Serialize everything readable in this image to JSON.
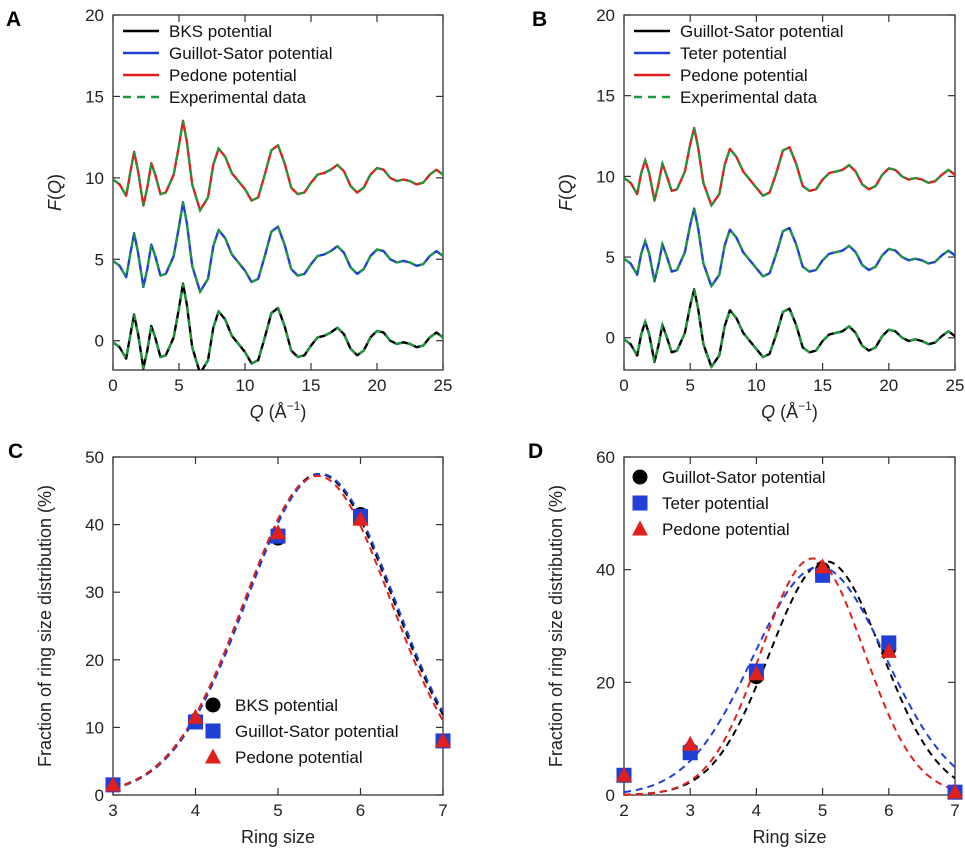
{
  "chart_data": [
    {
      "panel": "A",
      "type": "line",
      "xlabel_parts": [
        "Q",
        " (Å",
        "−1",
        ")"
      ],
      "ylabel_parts": [
        "F",
        "(",
        "Q",
        ")"
      ],
      "xlim": [
        0,
        25
      ],
      "ylim": [
        -1.8,
        20
      ],
      "xticks": [
        0,
        5,
        10,
        15,
        20,
        25
      ],
      "yticks": [
        0,
        5,
        10,
        15,
        20
      ],
      "grid": false,
      "legend_position": "top-left",
      "legend": [
        {
          "name": "BKS potential",
          "color": "#000000",
          "dash": false
        },
        {
          "name": "Guillot-Sator potential",
          "color": "#1f3fd6",
          "dash": false
        },
        {
          "name": "Pedone potential",
          "color": "#e0201c",
          "dash": false
        },
        {
          "name": "Experimental data",
          "color": "#1a9a3a",
          "dash": true
        }
      ],
      "x": [
        0,
        0.5,
        1.0,
        1.3,
        1.6,
        1.9,
        2.3,
        2.6,
        2.9,
        3.2,
        3.6,
        4.0,
        4.6,
        5.0,
        5.3,
        5.6,
        6.0,
        6.6,
        7.2,
        7.6,
        8.0,
        8.5,
        9.0,
        9.5,
        10.0,
        10.5,
        11.0,
        11.5,
        12.0,
        12.5,
        13.0,
        13.5,
        14.0,
        14.5,
        15.0,
        15.5,
        16.0,
        16.5,
        17.0,
        17.5,
        18.0,
        18.5,
        19.0,
        19.5,
        20.0,
        20.5,
        21.0,
        21.5,
        22.0,
        22.5,
        23.0,
        23.5,
        24.0,
        24.5,
        25.0
      ],
      "series": [
        {
          "name": "BKS potential",
          "color": "#000000",
          "offset": 0,
          "values": [
            -0.1,
            -0.4,
            -1.1,
            0.3,
            1.6,
            0.4,
            -1.7,
            -0.6,
            0.9,
            0.2,
            -1.0,
            -0.9,
            0.2,
            2.0,
            3.5,
            2.2,
            -0.4,
            -2.0,
            -1.2,
            0.8,
            1.8,
            1.3,
            0.3,
            -0.2,
            -0.7,
            -1.4,
            -1.2,
            0.2,
            1.7,
            2.0,
            0.9,
            -0.6,
            -1.0,
            -0.9,
            -0.3,
            0.2,
            0.3,
            0.5,
            0.8,
            0.4,
            -0.5,
            -0.9,
            -0.6,
            0.2,
            0.6,
            0.5,
            0.0,
            -0.2,
            -0.1,
            -0.2,
            -0.4,
            -0.3,
            0.2,
            0.5,
            0.2
          ]
        },
        {
          "name": "Guillot-Sator potential",
          "color": "#1f3fd6",
          "offset": 5,
          "values": [
            -0.1,
            -0.4,
            -1.1,
            0.3,
            1.6,
            0.4,
            -1.7,
            -0.6,
            0.9,
            0.2,
            -1.0,
            -0.9,
            0.2,
            2.0,
            3.5,
            2.2,
            -0.4,
            -2.0,
            -1.2,
            0.8,
            1.8,
            1.3,
            0.3,
            -0.2,
            -0.7,
            -1.4,
            -1.2,
            0.2,
            1.7,
            2.0,
            0.9,
            -0.6,
            -1.0,
            -0.9,
            -0.3,
            0.2,
            0.3,
            0.5,
            0.8,
            0.4,
            -0.5,
            -0.9,
            -0.6,
            0.2,
            0.6,
            0.5,
            0.0,
            -0.2,
            -0.1,
            -0.2,
            -0.4,
            -0.3,
            0.2,
            0.5,
            0.2
          ]
        },
        {
          "name": "Pedone potential",
          "color": "#e0201c",
          "offset": 10,
          "values": [
            -0.1,
            -0.4,
            -1.1,
            0.3,
            1.6,
            0.4,
            -1.7,
            -0.6,
            0.9,
            0.2,
            -1.0,
            -0.9,
            0.2,
            2.0,
            3.5,
            2.2,
            -0.4,
            -2.0,
            -1.2,
            0.8,
            1.8,
            1.3,
            0.3,
            -0.2,
            -0.7,
            -1.4,
            -1.2,
            0.2,
            1.7,
            2.0,
            0.9,
            -0.6,
            -1.0,
            -0.9,
            -0.3,
            0.2,
            0.3,
            0.5,
            0.8,
            0.4,
            -0.5,
            -0.9,
            -0.6,
            0.2,
            0.6,
            0.5,
            0.0,
            -0.2,
            -0.1,
            -0.2,
            -0.4,
            -0.3,
            0.2,
            0.5,
            0.2
          ]
        }
      ]
    },
    {
      "panel": "B",
      "type": "line",
      "xlabel_parts": [
        "Q",
        " (Å",
        "−1",
        ")"
      ],
      "ylabel_parts": [
        "F",
        "(",
        "Q",
        ")"
      ],
      "xlim": [
        0,
        25
      ],
      "ylim": [
        -2,
        20
      ],
      "xticks": [
        0,
        5,
        10,
        15,
        20,
        25
      ],
      "yticks": [
        0,
        5,
        10,
        15,
        20
      ],
      "grid": false,
      "legend_position": "top-left",
      "legend": [
        {
          "name": "Guillot-Sator potential",
          "color": "#000000",
          "dash": false
        },
        {
          "name": "Teter potential",
          "color": "#1f3fd6",
          "dash": false
        },
        {
          "name": "Pedone potential",
          "color": "#e0201c",
          "dash": false
        },
        {
          "name": "Experimental data",
          "color": "#1a9a3a",
          "dash": true
        }
      ],
      "x": [
        0,
        0.5,
        1.0,
        1.3,
        1.6,
        1.9,
        2.3,
        2.6,
        2.9,
        3.2,
        3.6,
        4.0,
        4.6,
        5.0,
        5.3,
        5.6,
        6.0,
        6.6,
        7.2,
        7.6,
        8.0,
        8.5,
        9.0,
        9.5,
        10.0,
        10.5,
        11.0,
        11.5,
        12.0,
        12.5,
        13.0,
        13.5,
        14.0,
        14.5,
        15.0,
        15.5,
        16.0,
        16.5,
        17.0,
        17.5,
        18.0,
        18.5,
        19.0,
        19.5,
        20.0,
        20.5,
        21.0,
        21.5,
        22.0,
        22.5,
        23.0,
        23.5,
        24.0,
        24.5,
        25.0
      ],
      "series": [
        {
          "name": "Guillot-Sator potential",
          "color": "#000000",
          "offset": 0,
          "values": [
            -0.1,
            -0.4,
            -1.1,
            0.2,
            1.0,
            0.2,
            -1.5,
            -0.5,
            0.8,
            0.1,
            -0.9,
            -0.8,
            0.3,
            2.0,
            3.0,
            1.8,
            -0.4,
            -1.8,
            -1.1,
            0.7,
            1.7,
            1.2,
            0.3,
            -0.2,
            -0.7,
            -1.2,
            -1.0,
            0.2,
            1.6,
            1.8,
            0.8,
            -0.6,
            -0.9,
            -0.8,
            -0.2,
            0.2,
            0.3,
            0.4,
            0.7,
            0.3,
            -0.5,
            -0.8,
            -0.6,
            0.1,
            0.5,
            0.4,
            0.0,
            -0.2,
            -0.1,
            -0.2,
            -0.4,
            -0.3,
            0.1,
            0.4,
            0.1
          ]
        },
        {
          "name": "Teter potential",
          "color": "#1f3fd6",
          "offset": 5,
          "values": [
            -0.1,
            -0.4,
            -1.1,
            0.2,
            1.0,
            0.2,
            -1.5,
            -0.5,
            0.8,
            0.1,
            -0.9,
            -0.8,
            0.3,
            2.0,
            3.0,
            1.8,
            -0.4,
            -1.8,
            -1.1,
            0.7,
            1.7,
            1.2,
            0.3,
            -0.2,
            -0.7,
            -1.2,
            -1.0,
            0.2,
            1.6,
            1.8,
            0.8,
            -0.6,
            -0.9,
            -0.8,
            -0.2,
            0.2,
            0.3,
            0.4,
            0.7,
            0.3,
            -0.5,
            -0.8,
            -0.6,
            0.1,
            0.5,
            0.4,
            0.0,
            -0.2,
            -0.1,
            -0.2,
            -0.4,
            -0.3,
            0.1,
            0.4,
            0.1
          ]
        },
        {
          "name": "Pedone potential",
          "color": "#e0201c",
          "offset": 10,
          "values": [
            -0.1,
            -0.4,
            -1.1,
            0.2,
            1.0,
            0.2,
            -1.5,
            -0.5,
            0.8,
            0.1,
            -0.9,
            -0.8,
            0.3,
            2.0,
            3.0,
            1.8,
            -0.4,
            -1.8,
            -1.1,
            0.7,
            1.7,
            1.2,
            0.3,
            -0.2,
            -0.7,
            -1.2,
            -1.0,
            0.2,
            1.6,
            1.8,
            0.8,
            -0.6,
            -0.9,
            -0.8,
            -0.2,
            0.2,
            0.3,
            0.4,
            0.7,
            0.3,
            -0.5,
            -0.8,
            -0.6,
            0.1,
            0.5,
            0.4,
            0.0,
            -0.2,
            -0.1,
            -0.2,
            -0.4,
            -0.3,
            0.1,
            0.4,
            0.1
          ]
        }
      ]
    },
    {
      "panel": "C",
      "type": "scatter",
      "xlabel": "Ring size",
      "ylabel": "Fraction of ring size distribution (%)",
      "xlim": [
        3,
        7
      ],
      "ylim": [
        0,
        50
      ],
      "xticks": [
        3,
        4,
        5,
        6,
        7
      ],
      "yticks": [
        0,
        10,
        20,
        30,
        40,
        50
      ],
      "grid": false,
      "legend_position": "bottom-center",
      "series": [
        {
          "name": "BKS potential",
          "marker": "circle",
          "color": "#000000",
          "x": [
            3,
            4,
            5,
            6,
            7
          ],
          "y": [
            1.5,
            11.0,
            38.0,
            41.5,
            8.0
          ],
          "fit": {
            "amp": 47.5,
            "mu": 5.5,
            "sigma": 0.9,
            "color": "#000000"
          }
        },
        {
          "name": "Guillot-Sator potential",
          "marker": "square",
          "color": "#1f3fd6",
          "x": [
            3,
            4,
            5,
            6,
            7
          ],
          "y": [
            1.5,
            10.8,
            38.3,
            41.2,
            8.0
          ],
          "fit": {
            "amp": 47.5,
            "mu": 5.52,
            "sigma": 0.9,
            "color": "#1f3fd6"
          }
        },
        {
          "name": "Pedone potential",
          "marker": "triangle",
          "color": "#e0201c",
          "x": [
            3,
            4,
            5,
            6,
            7
          ],
          "y": [
            1.5,
            11.5,
            38.8,
            40.8,
            8.0
          ],
          "fit": {
            "amp": 47.2,
            "mu": 5.48,
            "sigma": 0.89,
            "color": "#e0201c"
          }
        }
      ]
    },
    {
      "panel": "D",
      "type": "scatter",
      "xlabel": "Ring size",
      "ylabel": "Fraction of ring size distribution (%)",
      "xlim": [
        2,
        7
      ],
      "ylim": [
        0,
        60
      ],
      "xticks": [
        2,
        3,
        4,
        5,
        6,
        7
      ],
      "yticks": [
        0,
        20,
        40,
        60
      ],
      "grid": false,
      "legend_position": "top-left",
      "series": [
        {
          "name": "Guillot-Sator potential",
          "marker": "circle",
          "color": "#000000",
          "x": [
            2,
            3,
            4,
            5,
            6,
            7
          ],
          "y": [
            3.5,
            8.0,
            21.0,
            40.0,
            26.0,
            0.5
          ],
          "fit": {
            "amp": 41.5,
            "mu": 5.05,
            "sigma": 0.85,
            "color": "#000000"
          }
        },
        {
          "name": "Teter potential",
          "marker": "square",
          "color": "#1f3fd6",
          "x": [
            2,
            3,
            4,
            5,
            6,
            7
          ],
          "y": [
            3.5,
            7.5,
            22.0,
            39.0,
            27.0,
            0.5
          ],
          "fit": {
            "amp": 40.5,
            "mu": 4.95,
            "sigma": 1.0,
            "color": "#1f3fd6"
          }
        },
        {
          "name": "Pedone potential",
          "marker": "triangle",
          "color": "#e0201c",
          "x": [
            2,
            3,
            4,
            5,
            6,
            7
          ],
          "y": [
            3.5,
            9.0,
            21.5,
            40.5,
            25.5,
            0.5
          ],
          "fit": {
            "amp": 42.0,
            "mu": 4.85,
            "sigma": 0.78,
            "color": "#e0201c"
          }
        }
      ]
    }
  ],
  "experimental_color": "#1a9a3a"
}
